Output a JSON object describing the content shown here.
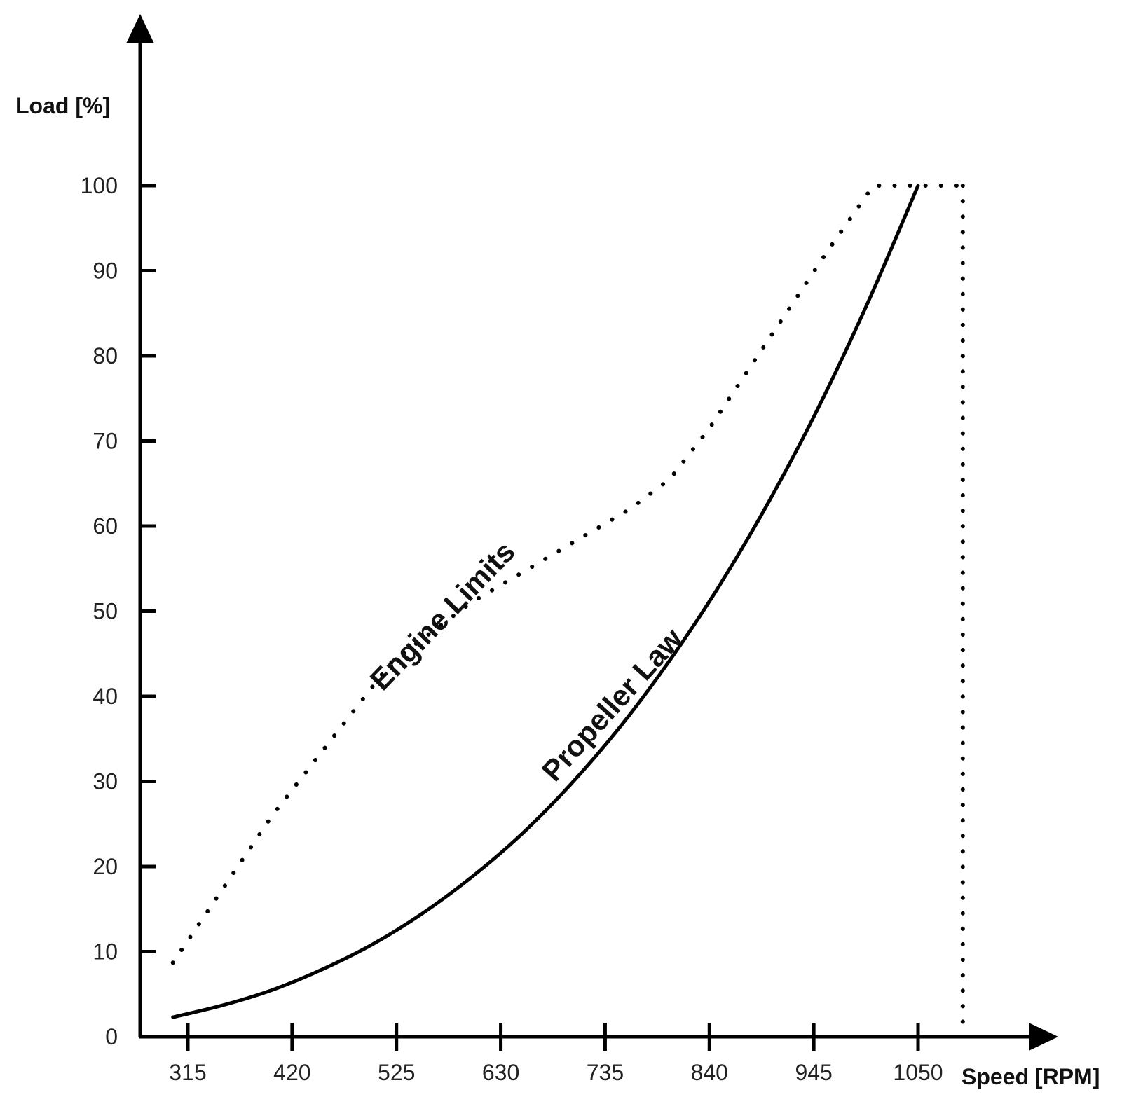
{
  "chart_data": {
    "type": "line",
    "xlabel": "Speed [RPM]",
    "ylabel": "Load [%]",
    "x_ticks": [
      315,
      420,
      525,
      630,
      735,
      840,
      945,
      1050
    ],
    "y_ticks": [
      0,
      10,
      20,
      30,
      40,
      50,
      60,
      70,
      80,
      90,
      100
    ],
    "xlim": [
      272,
      1200
    ],
    "ylim": [
      0,
      100
    ],
    "grid": false,
    "legend": "none",
    "series": [
      {
        "name": "Propeller Law",
        "style": "solid",
        "x": [
          300,
          350,
          400,
          450,
          500,
          550,
          600,
          650,
          700,
          750,
          800,
          850,
          900,
          950,
          1000,
          1050
        ],
        "y": [
          2.3,
          3.7,
          5.5,
          7.9,
          10.8,
          14.4,
          18.7,
          23.7,
          29.6,
          36.4,
          44.2,
          53.0,
          62.9,
          74.0,
          86.4,
          100.0
        ]
      },
      {
        "name": "Engine Limits",
        "style": "dotted",
        "x": [
          300,
          400,
          480,
          520,
          600,
          680,
          760,
          800,
          840,
          900,
          960,
          1005,
          1050,
          1095
        ],
        "y": [
          8.7,
          26.0,
          38.0,
          44.0,
          51.0,
          56.5,
          62.0,
          65.5,
          71.5,
          82.0,
          92.5,
          100.0,
          100.0,
          100.0
        ]
      },
      {
        "name": "",
        "style": "dotted",
        "x": [
          1095,
          1095
        ],
        "y": [
          100,
          0
        ]
      }
    ],
    "annotations": [
      {
        "text": "Engine Limits",
        "series": "Engine Limits"
      },
      {
        "text": "Propeller Law",
        "series": "Propeller Law"
      }
    ],
    "colors": {
      "axis": "#000000",
      "line": "#000000",
      "text": "#222222"
    }
  }
}
